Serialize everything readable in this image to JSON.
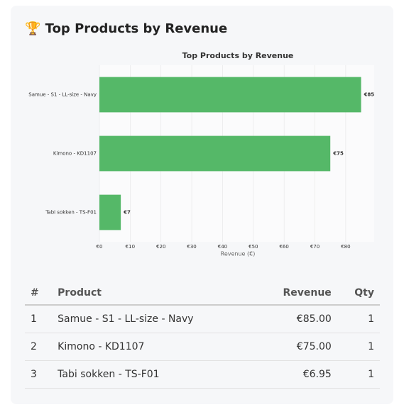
{
  "header": {
    "title": "🏆 Top Products by Revenue"
  },
  "chart_data": {
    "type": "barh",
    "title": "Top Products by Revenue",
    "xlabel": "Revenue (€)",
    "categories": [
      "Samue - S1 - LL-size - Navy",
      "Kimono - KD1107",
      "Tabi sokken - TS-F01"
    ],
    "values": [
      85,
      75,
      6.95
    ],
    "value_labels": [
      "€85",
      "€75",
      "€7"
    ],
    "color": "#55b868",
    "xlim": [
      0,
      89.25
    ],
    "xticks": [
      {
        "value": 0,
        "label": "€0"
      },
      {
        "value": 10,
        "label": "€10"
      },
      {
        "value": 20,
        "label": "€20"
      },
      {
        "value": 30,
        "label": "€30"
      },
      {
        "value": 40,
        "label": "€40"
      },
      {
        "value": 50,
        "label": "€50"
      },
      {
        "value": 60,
        "label": "€60"
      },
      {
        "value": 70,
        "label": "€70"
      },
      {
        "value": 80,
        "label": "€80"
      }
    ],
    "grid": true
  },
  "table": {
    "header": [
      "#",
      "Product",
      "Revenue",
      "Qty"
    ],
    "rows": [
      [
        "1",
        "Samue - S1 - LL-size - Navy",
        "€85.00",
        "1"
      ],
      [
        "2",
        "Kimono - KD1107",
        "€75.00",
        "1"
      ],
      [
        "3",
        "Tabi sokken - TS-F01",
        "€6.95",
        "1"
      ]
    ]
  }
}
